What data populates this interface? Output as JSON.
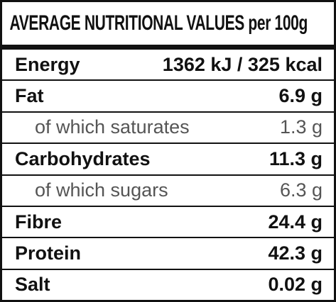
{
  "header": {
    "title": "AVERAGE NUTRITIONAL VALUES per 100g"
  },
  "table": {
    "rows": [
      {
        "label": "Energy",
        "value": "1362 kJ / 325 kcal"
      },
      {
        "label": "Fat",
        "value": "6.9 g"
      },
      {
        "label": "of which saturates",
        "value": "1.3 g"
      },
      {
        "label": "Carbohydrates",
        "value": "11.3 g"
      },
      {
        "label": "of which sugars",
        "value": "6.3 g"
      },
      {
        "label": "Fibre",
        "value": "24.4 g"
      },
      {
        "label": "Protein",
        "value": "42.3 g"
      },
      {
        "label": "Salt",
        "value": "0.02 g"
      }
    ]
  }
}
